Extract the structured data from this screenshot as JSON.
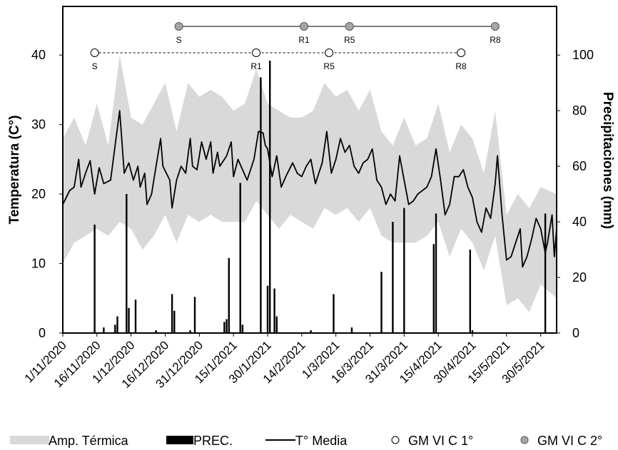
{
  "chart_data": {
    "type": "line",
    "title": "",
    "y_left": {
      "label": "Temperatura (C°)",
      "min": 0,
      "max": 47,
      "ticks": [
        0,
        10,
        20,
        30,
        40
      ]
    },
    "y_right": {
      "label": "Precipitaciones (mm)",
      "min": 0,
      "max": 117.5,
      "ticks": [
        0,
        20,
        40,
        60,
        80,
        100
      ]
    },
    "x_ticks": [
      "1/11/2020",
      "16/11/2020",
      "1/12/2020",
      "16/12/2020",
      "31/12/2020",
      "15/1/2021",
      "30/1/2021",
      "14/2/2021",
      "1/3/2021",
      "16/3/2021",
      "31/3/2021",
      "15/4/2021",
      "30/4/2021",
      "15/5/2021",
      "30/5/2021"
    ],
    "x_start": "1/11/2020",
    "x_end": "6/6/2021",
    "grid": false,
    "legend_position": "bottom",
    "legend": {
      "amp": "Amp. Térmica",
      "prec": "PREC.",
      "tmedia": "T° Media",
      "gm1": "GM VI C 1°",
      "gm2": "GM VI C 2°"
    },
    "colors": {
      "amp_band": "#d9d9d9",
      "prec": "#000000",
      "line": "#000000",
      "gm2_marker": "#a6a6a6",
      "gm1_marker": "#ffffff"
    },
    "t_media": [
      {
        "date": "1/11/2020",
        "value": 18.5
      },
      {
        "date": "4/11/2020",
        "value": 20.5
      },
      {
        "date": "6/11/2020",
        "value": 21
      },
      {
        "date": "8/11/2020",
        "value": 25
      },
      {
        "date": "9/11/2020",
        "value": 21
      },
      {
        "date": "11/11/2020",
        "value": 23
      },
      {
        "date": "13/11/2020",
        "value": 24.8
      },
      {
        "date": "15/11/2020",
        "value": 20
      },
      {
        "date": "17/11/2020",
        "value": 23.8
      },
      {
        "date": "19/11/2020",
        "value": 21.5
      },
      {
        "date": "22/11/2020",
        "value": 22
      },
      {
        "date": "24/11/2020",
        "value": 27
      },
      {
        "date": "26/11/2020",
        "value": 32
      },
      {
        "date": "28/11/2020",
        "value": 23
      },
      {
        "date": "30/11/2020",
        "value": 24.5
      },
      {
        "date": "2/12/2020",
        "value": 22
      },
      {
        "date": "4/12/2020",
        "value": 24
      },
      {
        "date": "5/12/2020",
        "value": 21
      },
      {
        "date": "7/12/2020",
        "value": 23
      },
      {
        "date": "8/12/2020",
        "value": 18.5
      },
      {
        "date": "10/12/2020",
        "value": 20
      },
      {
        "date": "12/12/2020",
        "value": 24
      },
      {
        "date": "14/12/2020",
        "value": 28
      },
      {
        "date": "15/12/2020",
        "value": 24
      },
      {
        "date": "18/12/2020",
        "value": 22
      },
      {
        "date": "19/12/2020",
        "value": 18
      },
      {
        "date": "21/12/2020",
        "value": 22
      },
      {
        "date": "23/12/2020",
        "value": 24
      },
      {
        "date": "25/12/2020",
        "value": 23
      },
      {
        "date": "27/12/2020",
        "value": 28
      },
      {
        "date": "28/12/2020",
        "value": 24
      },
      {
        "date": "30/12/2020",
        "value": 23.5
      },
      {
        "date": "1/1/2021",
        "value": 27.5
      },
      {
        "date": "3/1/2021",
        "value": 25
      },
      {
        "date": "5/1/2021",
        "value": 27.5
      },
      {
        "date": "6/1/2021",
        "value": 23
      },
      {
        "date": "8/1/2021",
        "value": 26
      },
      {
        "date": "9/1/2021",
        "value": 24
      },
      {
        "date": "12/1/2021",
        "value": 25.5
      },
      {
        "date": "14/1/2021",
        "value": 27.5
      },
      {
        "date": "15/1/2021",
        "value": 22.5
      },
      {
        "date": "17/1/2021",
        "value": 25
      },
      {
        "date": "19/1/2021",
        "value": 23.5
      },
      {
        "date": "21/1/2021",
        "value": 22
      },
      {
        "date": "24/1/2021",
        "value": 25
      },
      {
        "date": "26/1/2021",
        "value": 29
      },
      {
        "date": "28/1/2021",
        "value": 28.8
      },
      {
        "date": "29/1/2021",
        "value": 27
      },
      {
        "date": "30/1/2021",
        "value": 26.5
      },
      {
        "date": "1/2/2021",
        "value": 22.5
      },
      {
        "date": "3/2/2021",
        "value": 25.5
      },
      {
        "date": "5/2/2021",
        "value": 21
      },
      {
        "date": "7/2/2021",
        "value": 22.5
      },
      {
        "date": "10/2/2021",
        "value": 24.5
      },
      {
        "date": "12/2/2021",
        "value": 23
      },
      {
        "date": "14/2/2021",
        "value": 22.5
      },
      {
        "date": "16/2/2021",
        "value": 24
      },
      {
        "date": "18/2/2021",
        "value": 25
      },
      {
        "date": "20/2/2021",
        "value": 21.5
      },
      {
        "date": "23/2/2021",
        "value": 24.5
      },
      {
        "date": "25/2/2021",
        "value": 29
      },
      {
        "date": "27/2/2021",
        "value": 23
      },
      {
        "date": "1/3/2021",
        "value": 25
      },
      {
        "date": "3/3/2021",
        "value": 28
      },
      {
        "date": "5/3/2021",
        "value": 26
      },
      {
        "date": "7/3/2021",
        "value": 27
      },
      {
        "date": "9/3/2021",
        "value": 24
      },
      {
        "date": "11/3/2021",
        "value": 23
      },
      {
        "date": "13/3/2021",
        "value": 24.5
      },
      {
        "date": "15/3/2021",
        "value": 25
      },
      {
        "date": "17/3/2021",
        "value": 26.5
      },
      {
        "date": "19/3/2021",
        "value": 22
      },
      {
        "date": "21/3/2021",
        "value": 21
      },
      {
        "date": "23/3/2021",
        "value": 18.5
      },
      {
        "date": "25/3/2021",
        "value": 20
      },
      {
        "date": "27/3/2021",
        "value": 19
      },
      {
        "date": "29/3/2021",
        "value": 25.5
      },
      {
        "date": "31/3/2021",
        "value": 22
      },
      {
        "date": "2/4/2021",
        "value": 18.5
      },
      {
        "date": "4/4/2021",
        "value": 19
      },
      {
        "date": "6/4/2021",
        "value": 20
      },
      {
        "date": "8/4/2021",
        "value": 20.5
      },
      {
        "date": "10/4/2021",
        "value": 21
      },
      {
        "date": "12/4/2021",
        "value": 22.5
      },
      {
        "date": "14/4/2021",
        "value": 26.5
      },
      {
        "date": "16/4/2021",
        "value": 22
      },
      {
        "date": "18/4/2021",
        "value": 17
      },
      {
        "date": "20/4/2021",
        "value": 18.5
      },
      {
        "date": "22/4/2021",
        "value": 22.5
      },
      {
        "date": "24/4/2021",
        "value": 22.5
      },
      {
        "date": "26/4/2021",
        "value": 23.5
      },
      {
        "date": "28/4/2021",
        "value": 21
      },
      {
        "date": "30/4/2021",
        "value": 19.5
      },
      {
        "date": "2/5/2021",
        "value": 16
      },
      {
        "date": "4/5/2021",
        "value": 14.5
      },
      {
        "date": "6/5/2021",
        "value": 18
      },
      {
        "date": "8/5/2021",
        "value": 16.5
      },
      {
        "date": "10/5/2021",
        "value": 21.5
      },
      {
        "date": "11/5/2021",
        "value": 25.5
      },
      {
        "date": "13/5/2021",
        "value": 17
      },
      {
        "date": "15/5/2021",
        "value": 10.5
      },
      {
        "date": "17/5/2021",
        "value": 11
      },
      {
        "date": "19/5/2021",
        "value": 13
      },
      {
        "date": "21/5/2021",
        "value": 15
      },
      {
        "date": "22/5/2021",
        "value": 9.5
      },
      {
        "date": "24/5/2021",
        "value": 11
      },
      {
        "date": "26/5/2021",
        "value": 13.5
      },
      {
        "date": "28/5/2021",
        "value": 16.5
      },
      {
        "date": "30/5/2021",
        "value": 15
      },
      {
        "date": "1/6/2021",
        "value": 11.5
      },
      {
        "date": "2/6/2021",
        "value": 13
      },
      {
        "date": "4/6/2021",
        "value": 17
      },
      {
        "date": "5/6/2021",
        "value": 11
      },
      {
        "date": "6/6/2021",
        "value": 15
      }
    ],
    "amp_termica": [
      {
        "date": "1/11/2020",
        "min": 10,
        "max": 28
      },
      {
        "date": "6/11/2020",
        "min": 13,
        "max": 31
      },
      {
        "date": "11/11/2020",
        "min": 14,
        "max": 27
      },
      {
        "date": "16/11/2020",
        "min": 15,
        "max": 33
      },
      {
        "date": "21/11/2020",
        "min": 14,
        "max": 27
      },
      {
        "date": "26/11/2020",
        "min": 16,
        "max": 40
      },
      {
        "date": "1/12/2020",
        "min": 15,
        "max": 31
      },
      {
        "date": "6/12/2020",
        "min": 12,
        "max": 30
      },
      {
        "date": "11/12/2020",
        "min": 14,
        "max": 33
      },
      {
        "date": "16/12/2020",
        "min": 17,
        "max": 36
      },
      {
        "date": "21/12/2020",
        "min": 13,
        "max": 29
      },
      {
        "date": "26/12/2020",
        "min": 17,
        "max": 36
      },
      {
        "date": "31/12/2020",
        "min": 16,
        "max": 34
      },
      {
        "date": "5/1/2021",
        "min": 17,
        "max": 35
      },
      {
        "date": "10/1/2021",
        "min": 16,
        "max": 34
      },
      {
        "date": "15/1/2021",
        "min": 16,
        "max": 32
      },
      {
        "date": "20/1/2021",
        "min": 16,
        "max": 33
      },
      {
        "date": "25/1/2021",
        "min": 19,
        "max": 38
      },
      {
        "date": "30/1/2021",
        "min": 17,
        "max": 33
      },
      {
        "date": "4/2/2021",
        "min": 15,
        "max": 32
      },
      {
        "date": "9/2/2021",
        "min": 17,
        "max": 31
      },
      {
        "date": "14/2/2021",
        "min": 16,
        "max": 31
      },
      {
        "date": "19/2/2021",
        "min": 15,
        "max": 32
      },
      {
        "date": "24/2/2021",
        "min": 18,
        "max": 36
      },
      {
        "date": "1/3/2021",
        "min": 17,
        "max": 34
      },
      {
        "date": "6/3/2021",
        "min": 18,
        "max": 35
      },
      {
        "date": "11/3/2021",
        "min": 16,
        "max": 32
      },
      {
        "date": "16/3/2021",
        "min": 18,
        "max": 35
      },
      {
        "date": "21/3/2021",
        "min": 14,
        "max": 29
      },
      {
        "date": "26/3/2021",
        "min": 13,
        "max": 27
      },
      {
        "date": "31/3/2021",
        "min": 13,
        "max": 31
      },
      {
        "date": "5/4/2021",
        "min": 13,
        "max": 27
      },
      {
        "date": "10/4/2021",
        "min": 14,
        "max": 28
      },
      {
        "date": "15/4/2021",
        "min": 16,
        "max": 33
      },
      {
        "date": "20/4/2021",
        "min": 11,
        "max": 26
      },
      {
        "date": "25/4/2021",
        "min": 15,
        "max": 30
      },
      {
        "date": "30/4/2021",
        "min": 13,
        "max": 28
      },
      {
        "date": "5/5/2021",
        "min": 9,
        "max": 23
      },
      {
        "date": "10/5/2021",
        "min": 14,
        "max": 32
      },
      {
        "date": "15/5/2021",
        "min": 4,
        "max": 17
      },
      {
        "date": "20/5/2021",
        "min": 5,
        "max": 20
      },
      {
        "date": "25/5/2021",
        "min": 3,
        "max": 18
      },
      {
        "date": "30/5/2021",
        "min": 7,
        "max": 21
      },
      {
        "date": "6/6/2021",
        "min": 5,
        "max": 20
      }
    ],
    "precipitation": [
      {
        "date": "15/11/2020",
        "value": 39
      },
      {
        "date": "19/11/2020",
        "value": 2
      },
      {
        "date": "24/11/2020",
        "value": 3
      },
      {
        "date": "25/11/2020",
        "value": 6
      },
      {
        "date": "29/11/2020",
        "value": 50
      },
      {
        "date": "30/11/2020",
        "value": 9
      },
      {
        "date": "3/12/2020",
        "value": 12
      },
      {
        "date": "12/12/2020",
        "value": 1
      },
      {
        "date": "19/12/2020",
        "value": 14
      },
      {
        "date": "20/12/2020",
        "value": 8
      },
      {
        "date": "27/12/2020",
        "value": 1
      },
      {
        "date": "29/12/2020",
        "value": 13
      },
      {
        "date": "11/1/2021",
        "value": 4
      },
      {
        "date": "12/1/2021",
        "value": 5
      },
      {
        "date": "13/1/2021",
        "value": 27
      },
      {
        "date": "18/1/2021",
        "value": 54
      },
      {
        "date": "19/1/2021",
        "value": 3
      },
      {
        "date": "27/1/2021",
        "value": 92
      },
      {
        "date": "30/1/2021",
        "value": 17
      },
      {
        "date": "31/1/2021",
        "value": 98
      },
      {
        "date": "2/2/2021",
        "value": 16
      },
      {
        "date": "3/2/2021",
        "value": 6
      },
      {
        "date": "18/2/2021",
        "value": 1
      },
      {
        "date": "28/2/2021",
        "value": 14
      },
      {
        "date": "8/3/2021",
        "value": 2
      },
      {
        "date": "21/3/2021",
        "value": 22
      },
      {
        "date": "26/3/2021",
        "value": 40
      },
      {
        "date": "31/3/2021",
        "value": 45
      },
      {
        "date": "13/4/2021",
        "value": 32
      },
      {
        "date": "14/4/2021",
        "value": 43
      },
      {
        "date": "29/4/2021",
        "value": 30
      },
      {
        "date": "30/4/2021",
        "value": 1
      },
      {
        "date": "1/6/2021",
        "value": 43
      }
    ],
    "phenology": {
      "gm1": [
        {
          "label": "S",
          "date": "15/11/2020"
        },
        {
          "label": "R1",
          "date": "25/1/2021"
        },
        {
          "label": "R5",
          "date": "26/2/2021"
        },
        {
          "label": "R8",
          "date": "25/4/2021"
        }
      ],
      "gm2": [
        {
          "label": "S",
          "date": "22/12/2020"
        },
        {
          "label": "R1",
          "date": "15/2/2021"
        },
        {
          "label": "R5",
          "date": "7/3/2021"
        },
        {
          "label": "R8",
          "date": "10/5/2021"
        }
      ]
    }
  }
}
